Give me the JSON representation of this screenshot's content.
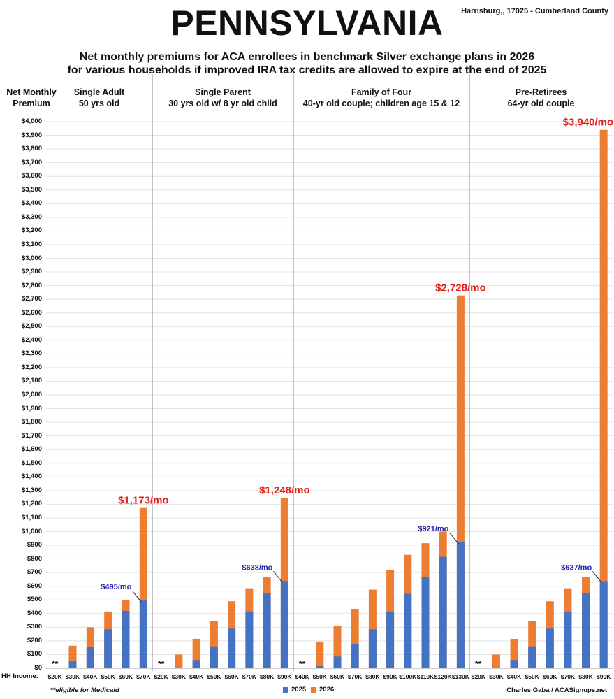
{
  "header": {
    "title": "PENNSYLVANIA",
    "location": "Harrisburg,, 17025 - Cumberland County",
    "subtitle_line1": "Net monthly premiums for ACA enrollees in benchmark Silver exchange plans in 2026",
    "subtitle_line2": "for various households if improved IRA tax credits are allowed to expire at the end of 2025"
  },
  "y_axis_title": [
    "Net Monthly",
    "Premium"
  ],
  "x_axis_prefix": "HH Income:",
  "footnote": "**eligible for Medicaid",
  "credit": "Charles Gaba / ACASignups.net",
  "colors": {
    "y2025": "#4472c4",
    "y2026": "#ed7d31",
    "highlight_red": "#e0201b",
    "highlight_blue": "#2222aa"
  },
  "chart_data": {
    "type": "bar",
    "stacked": true,
    "title": "Net monthly premiums for ACA enrollees in benchmark Silver exchange plans in 2026",
    "ylabel": "Net Monthly Premium",
    "xlabel": "HH Income",
    "ylim": [
      0,
      4000
    ],
    "ytick_step": 100,
    "legend": [
      {
        "name": "2025",
        "color": "#4472c4"
      },
      {
        "name": "2026",
        "color": "#ed7d31"
      }
    ],
    "legend_position": "bottom-center",
    "groups": [
      {
        "title": "Single Adult",
        "subtitle": "50 yrs old",
        "categories": [
          "$20K",
          "$30K",
          "$40K",
          "$50K",
          "$60K",
          "$70K"
        ],
        "y2025": [
          0,
          50,
          155,
          285,
          420,
          495
        ],
        "y2026": [
          0,
          165,
          300,
          415,
          500,
          1173
        ],
        "medicaid_label": "**",
        "label_2026": "$1,173/mo",
        "label_2025": "$495/mo"
      },
      {
        "title": "Single Parent",
        "subtitle": "30 yrs old w/ 8 yr old child",
        "categories": [
          "$20K",
          "$30K",
          "$40K",
          "$50K",
          "$60K",
          "$70K",
          "$80K",
          "$90K"
        ],
        "y2025": [
          0,
          0,
          60,
          160,
          290,
          415,
          550,
          638
        ],
        "y2026": [
          0,
          100,
          215,
          345,
          490,
          585,
          665,
          1248
        ],
        "medicaid_label": "**",
        "label_2026": "$1,248/mo",
        "label_2025": "$638/mo"
      },
      {
        "title": "Family of Four",
        "subtitle": "40-yr old couple; children age 15 & 12",
        "categories": [
          "$40K",
          "$50K",
          "$60K",
          "$70K",
          "$80K",
          "$90K",
          "$100K",
          "$110K",
          "$120K",
          "$130K"
        ],
        "y2025": [
          0,
          15,
          85,
          175,
          285,
          415,
          545,
          670,
          815,
          921
        ],
        "y2026": [
          0,
          195,
          310,
          435,
          575,
          720,
          830,
          915,
          1000,
          2728
        ],
        "medicaid_label": "**",
        "label_2026": "$2,728/mo",
        "label_2025": "$921/mo"
      },
      {
        "title": "Pre-Retirees",
        "subtitle": "64-yr old couple",
        "categories": [
          "$20K",
          "$30K",
          "$40K",
          "$50K",
          "$60K",
          "$70K",
          "$80K",
          "$90K"
        ],
        "y2025": [
          0,
          0,
          60,
          160,
          290,
          415,
          550,
          637
        ],
        "y2026": [
          0,
          100,
          215,
          345,
          490,
          585,
          665,
          3940
        ],
        "medicaid_label": "**",
        "label_2026": "$3,940/mo",
        "label_2025": "$637/mo"
      }
    ]
  }
}
